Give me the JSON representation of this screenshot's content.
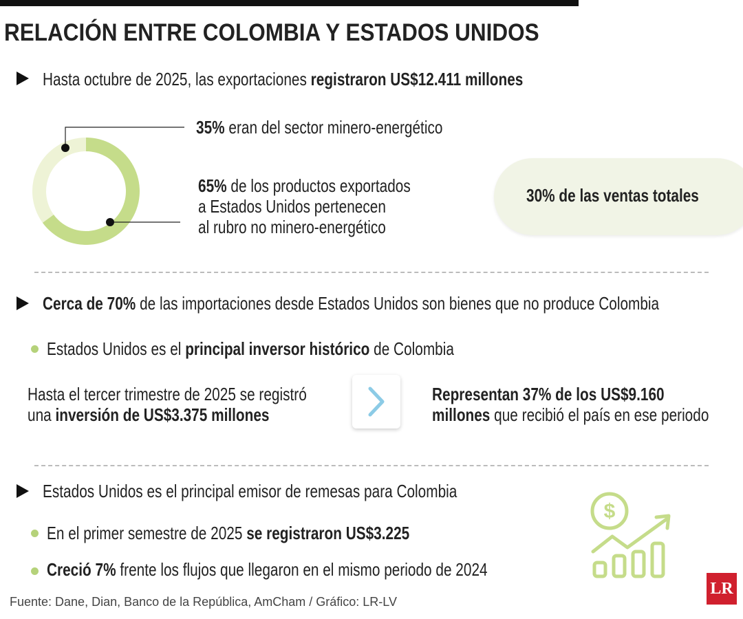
{
  "title": "RELACIÓN ENTRE COLOMBIA Y ESTADOS UNIDOS",
  "exports": {
    "lead": [
      "Hasta octubre de 2025, las exportaciones",
      "registraron US$12.411 millones"
    ],
    "donut": {
      "type": "pie",
      "values": [
        35,
        65
      ],
      "value_labels": [
        "35%",
        "65%"
      ],
      "colors": [
        "#eef3d6",
        "#c5dc8a"
      ]
    },
    "labels": [
      [
        "eran del sector minero-energético"
      ],
      [
        "de los productos exportados",
        "a Estados Unidos pertenecen",
        "al rubro no minero-energético"
      ]
    ],
    "callout": "30% de las ventas totales"
  },
  "imports": {
    "lead": [
      "Cerca de 70%",
      "de las importaciones desde Estados Unidos son bienes que no produce Colombia"
    ],
    "bullet": [
      "Estados Unidos es el",
      "principal inversor histórico",
      "de Colombia"
    ],
    "left": [
      "Hasta el tercer trimestre de 2025 se registró",
      "una",
      "inversión de US$3.375 millones"
    ],
    "right": [
      "Representan 37% de los US$9.160",
      "millones",
      "que recibió el país en ese periodo"
    ]
  },
  "remittances": {
    "lead": "Estados Unidos es el principal emisor de remesas para Colombia",
    "bullets": [
      [
        "En el primer semestre de 2025",
        "se registraron US$3.225"
      ],
      [
        "Creció 7%",
        "frente los flujos que llegaron en el mismo periodo de 2024"
      ]
    ]
  },
  "source": "Fuente: Dane, Dian, Banco de la República, AmCham / Gráfico: LR-LV",
  "logo": "LR"
}
